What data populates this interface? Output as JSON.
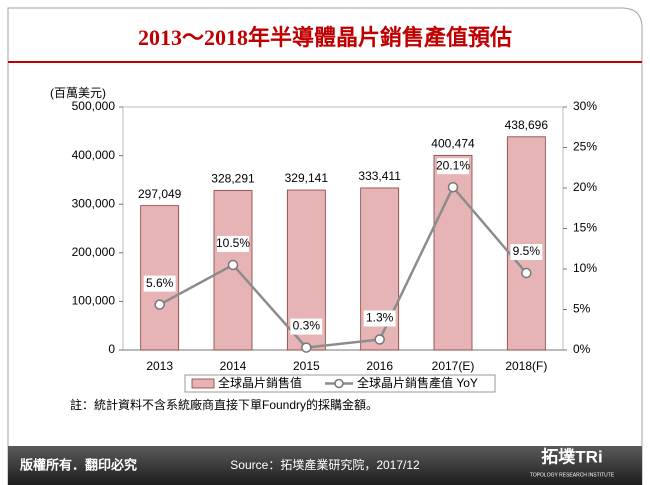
{
  "chart_data": {
    "type": "bar",
    "title": "2013～2018年半導體晶片銷售產值預估",
    "ylabel": "(百萬美元)",
    "categories": [
      "2013",
      "2014",
      "2015",
      "2016",
      "2017(E)",
      "2018(F)"
    ],
    "series": [
      {
        "name": "全球晶片銷售值",
        "type": "bar",
        "color": "#e6b4b4",
        "values": [
          297049,
          328291,
          329141,
          333411,
          400474,
          438696
        ],
        "value_labels": [
          "297,049",
          "328,291",
          "329,141",
          "333,411",
          "400,474",
          "438,696"
        ]
      },
      {
        "name": "全球晶片銷售產值 YoY",
        "type": "line",
        "axis": "y2",
        "color": "#8c8c8c",
        "values": [
          5.6,
          10.5,
          0.3,
          1.3,
          20.1,
          9.5
        ],
        "value_labels": [
          "5.6%",
          "10.5%",
          "0.3%",
          "1.3%",
          "20.1%",
          "9.5%"
        ]
      }
    ],
    "ylim": [
      0,
      500000
    ],
    "yticks": [
      0,
      {
        "value": 100000,
        "label": "100,000"
      },
      {
        "value": 200000,
        "label": "200,000"
      },
      {
        "value": 300000,
        "label": "300,000"
      },
      {
        "value": 400000,
        "label": "400,000"
      },
      {
        "value": 500000,
        "label": "500,000"
      }
    ],
    "y2lim": [
      0,
      30
    ],
    "y2ticks": [
      {
        "value": 0,
        "label": "0%"
      },
      {
        "value": 5,
        "label": "5%"
      },
      {
        "value": 10,
        "label": "10%"
      },
      {
        "value": 15,
        "label": "15%"
      },
      {
        "value": 20,
        "label": "20%"
      },
      {
        "value": 25,
        "label": "25%"
      },
      {
        "value": 30,
        "label": "30%"
      }
    ],
    "grid": false,
    "legend": "bottom",
    "note": "註：統計資料不含系統廠商直接下單Foundry的採購金額。"
  },
  "footer": {
    "copyright": "版權所有．翻印必究",
    "source": "Source：拓墣產業研究院，2017/12"
  },
  "logo": {
    "name": "拓墣TRi",
    "subtitle": "TOPOLOGY RESEARCH INSTITUTE"
  }
}
